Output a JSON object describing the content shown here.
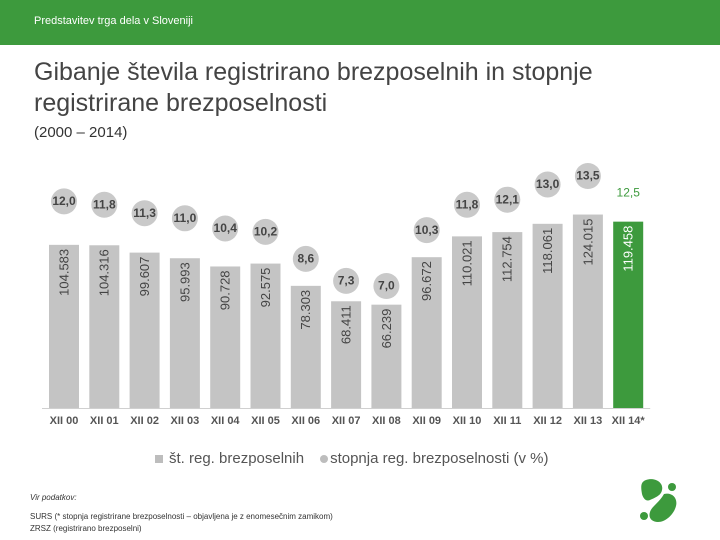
{
  "header": {
    "title": "Predstavitev trga dela v Sloveniji",
    "accent_color": "#3d9a3d"
  },
  "slide": {
    "title": "Gibanje števila registrirano brezposelnih in stopnje registrirane brezposelnosti",
    "subtitle": "(2000 – 2014)"
  },
  "chart_data": {
    "type": "bar",
    "categories": [
      "XII 00",
      "XII 01",
      "XII 02",
      "XII 03",
      "XII 04",
      "XII 05",
      "XII 06",
      "XII 07",
      "XII 08",
      "XII 09",
      "XII 10",
      "XII 11",
      "XII 12",
      "XII 13",
      "XII 14*"
    ],
    "series": [
      {
        "name": "št. reg. brezposelnih",
        "values": [
          104583,
          104316,
          99607,
          95993,
          90728,
          92575,
          78303,
          68411,
          66239,
          96672,
          110021,
          112754,
          118061,
          124015,
          119458
        ],
        "labels": [
          "104.583",
          "104.316",
          "99.607",
          "95.993",
          "90.728",
          "92.575",
          "78.303",
          "68.411",
          "66.239",
          "96.672",
          "110.021",
          "112.754",
          "118.061",
          "124.015",
          "119.458"
        ]
      },
      {
        "name": "stopnja reg. brezposelnosti (v %)",
        "values": [
          12.0,
          11.8,
          11.3,
          11.0,
          10.4,
          10.2,
          8.6,
          7.3,
          7.0,
          10.3,
          11.8,
          12.1,
          13.0,
          13.5,
          12.5
        ],
        "labels": [
          "12,0",
          "11,8",
          "11,3",
          "11,0",
          "10,4",
          "10,2",
          "8,6",
          "7,3",
          "7,0",
          "10,3",
          "11,8",
          "12,1",
          "13,0",
          "13,5",
          "12,5"
        ]
      }
    ],
    "highlight_index": 14,
    "colors": {
      "bar": "#c4c4c4",
      "highlight": "#3d9a3d",
      "bubble": "#c9c9c9"
    },
    "bar_ylim": [
      0,
      165000
    ],
    "rate_range": [
      7.0,
      13.5
    ],
    "legend_position": "bottom",
    "grid": false
  },
  "source": {
    "heading": "Vir podatkov:",
    "lines": [
      "SURS (* stopnja registrirane brezposelnosti – objavljena je z enomesečnim zamikom)",
      "ZRSZ (registrirano brezposelni)"
    ]
  }
}
